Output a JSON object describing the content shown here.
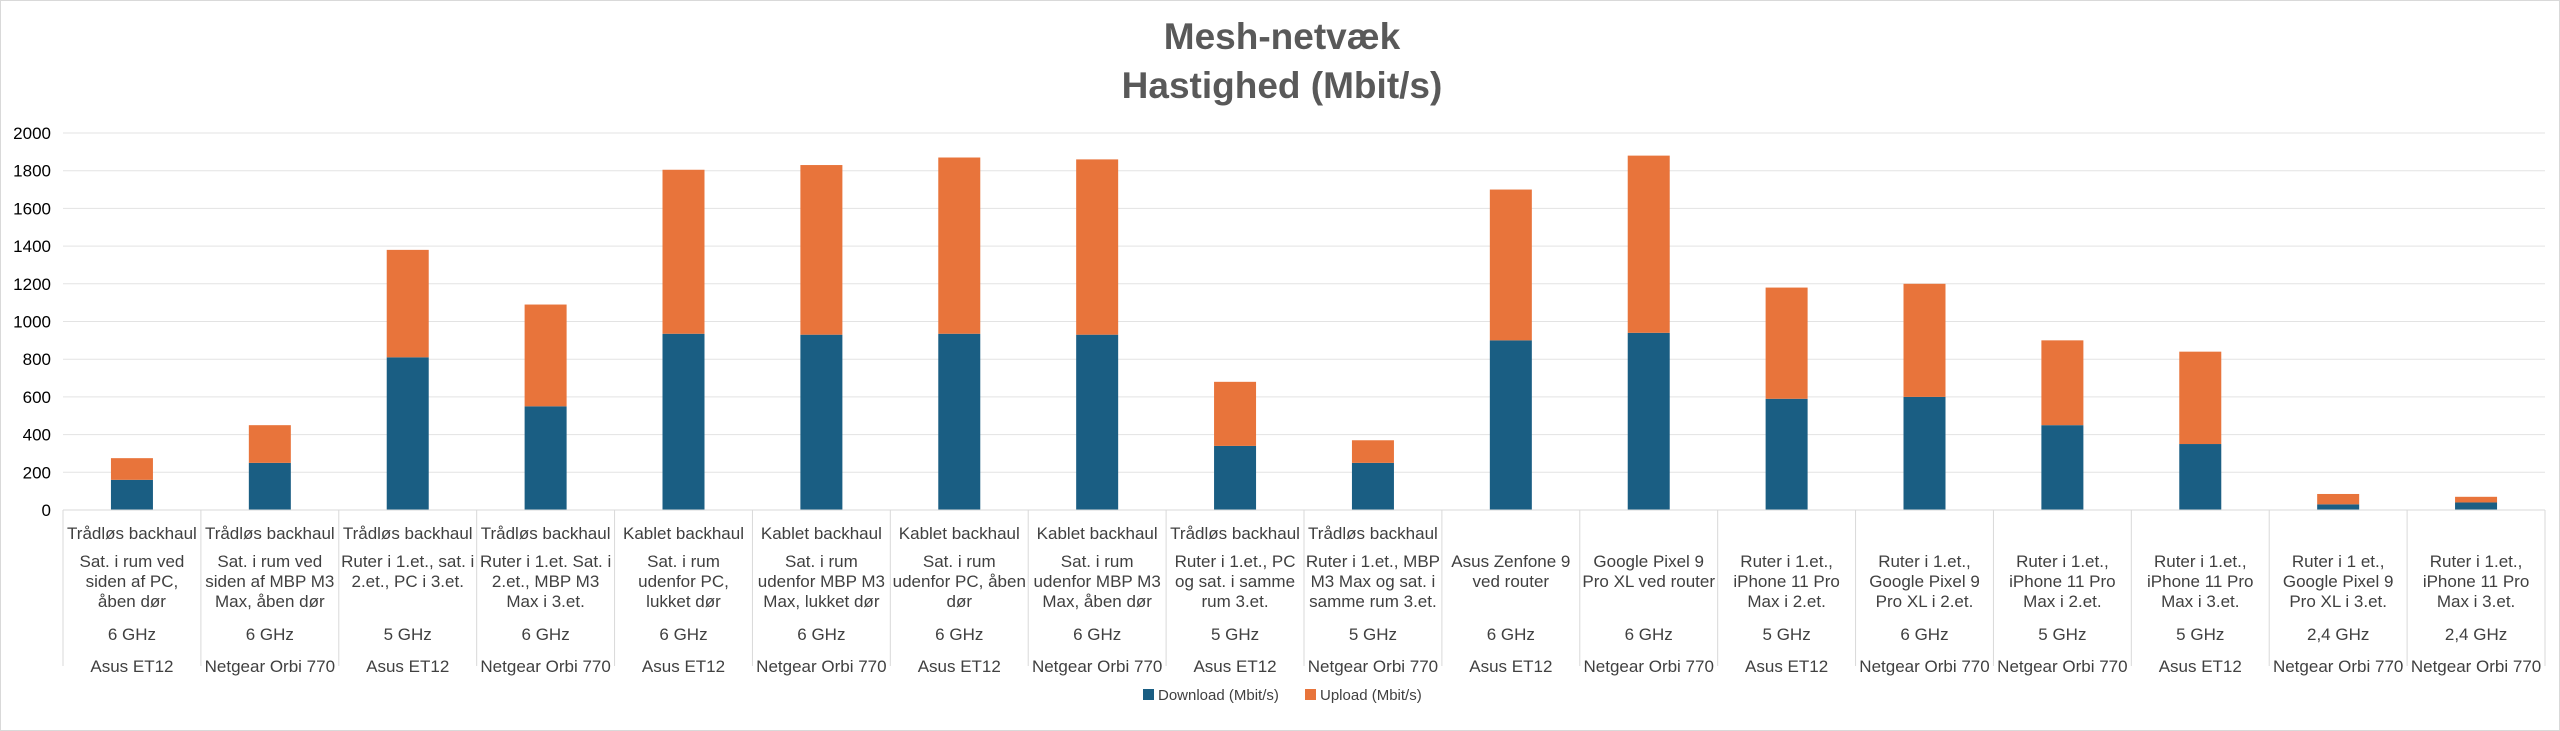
{
  "chart_data": {
    "type": "bar",
    "stacked": true,
    "title": "Mesh-netvæk",
    "subtitle": "Hastighed (Mbit/s)",
    "ylim": [
      0,
      2000
    ],
    "yticks": [
      "0",
      "200",
      "400",
      "600",
      "800",
      "1000",
      "1200",
      "1400",
      "1600",
      "1800",
      "2000"
    ],
    "grid": true,
    "legend_position": "bottom",
    "categories": [
      {
        "level1": "Trådløs backhaul",
        "level2": [
          "Sat. i rum ved",
          "siden af PC,",
          "åben dør"
        ],
        "level3": "6 GHz",
        "level4": "Asus ET12"
      },
      {
        "level1": "Trådløs backhaul",
        "level2": [
          "Sat. i rum ved",
          "siden af MBP M3",
          "Max, åben dør"
        ],
        "level3": "6 GHz",
        "level4": "Netgear Orbi 770"
      },
      {
        "level1": "Trådløs backhaul",
        "level2": [
          "Ruter i 1.et., sat. i",
          "2.et., PC i 3.et."
        ],
        "level3": "5 GHz",
        "level4": "Asus ET12"
      },
      {
        "level1": "Trådløs backhaul",
        "level2": [
          "Ruter i 1.et. Sat. i",
          "2.et., MBP M3",
          "Max i 3.et."
        ],
        "level3": "6 GHz",
        "level4": "Netgear Orbi 770"
      },
      {
        "level1": "Kablet backhaul",
        "level2": [
          "Sat. i rum",
          "udenfor PC,",
          "lukket dør"
        ],
        "level3": "6 GHz",
        "level4": "Asus ET12"
      },
      {
        "level1": "Kablet backhaul",
        "level2": [
          "Sat. i rum",
          "udenfor MBP M3",
          "Max, lukket dør"
        ],
        "level3": "6 GHz",
        "level4": "Netgear Orbi 770"
      },
      {
        "level1": "Kablet backhaul",
        "level2": [
          "Sat. i rum",
          "udenfor PC, åben",
          "dør"
        ],
        "level3": "6 GHz",
        "level4": "Asus ET12"
      },
      {
        "level1": "Kablet backhaul",
        "level2": [
          "Sat. i rum",
          "udenfor MBP M3",
          "Max, åben dør"
        ],
        "level3": "6 GHz",
        "level4": "Netgear Orbi 770"
      },
      {
        "level1": "Trådløs backhaul",
        "level2": [
          "Ruter i 1.et., PC",
          "og sat. i samme",
          "rum 3.et."
        ],
        "level3": "5 GHz",
        "level4": "Asus ET12"
      },
      {
        "level1": "Trådløs backhaul",
        "level2": [
          "Ruter i 1.et., MBP",
          "M3 Max og sat. i",
          "samme rum 3.et."
        ],
        "level3": "5 GHz",
        "level4": "Netgear Orbi 770"
      },
      {
        "level1": "",
        "level2": [
          "Asus Zenfone 9",
          "ved router"
        ],
        "level3": "6 GHz",
        "level4": "Asus ET12"
      },
      {
        "level1": "",
        "level2": [
          "Google Pixel 9",
          "Pro XL ved router"
        ],
        "level3": "6 GHz",
        "level4": "Netgear Orbi 770"
      },
      {
        "level1": "",
        "level2": [
          "Ruter i 1.et.,",
          "iPhone 11 Pro",
          "Max i 2.et."
        ],
        "level3": "5 GHz",
        "level4": "Asus ET12"
      },
      {
        "level1": "",
        "level2": [
          "Ruter i 1.et.,",
          "Google Pixel 9",
          "Pro XL i 2.et."
        ],
        "level3": "6 GHz",
        "level4": "Netgear Orbi 770"
      },
      {
        "level1": "",
        "level2": [
          "Ruter i 1.et.,",
          "iPhone 11 Pro",
          "Max i 2.et."
        ],
        "level3": "5 GHz",
        "level4": "Netgear Orbi 770"
      },
      {
        "level1": "",
        "level2": [
          "Ruter i 1.et.,",
          "iPhone 11 Pro",
          "Max i 3.et."
        ],
        "level3": "5 GHz",
        "level4": "Asus ET12"
      },
      {
        "level1": "",
        "level2": [
          "Ruter i 1 et.,",
          "Google Pixel 9",
          "Pro XL i 3.et."
        ],
        "level3": "2,4 GHz",
        "level4": "Netgear Orbi 770"
      },
      {
        "level1": "",
        "level2": [
          "Ruter i 1.et.,",
          "iPhone 11 Pro",
          "Max i 3.et."
        ],
        "level3": "2,4 GHz",
        "level4": "Netgear Orbi 770"
      }
    ],
    "series": [
      {
        "name": "Download (Mbit/s)",
        "color": "#1a5e83",
        "values": [
          160,
          250,
          810,
          550,
          935,
          930,
          935,
          930,
          340,
          250,
          900,
          940,
          590,
          600,
          450,
          350,
          30,
          40
        ]
      },
      {
        "name": "Upload (Mbit/s)",
        "color": "#e8743b",
        "values": [
          115,
          200,
          570,
          540,
          870,
          900,
          935,
          930,
          340,
          120,
          800,
          940,
          590,
          600,
          450,
          490,
          55,
          30
        ]
      }
    ]
  }
}
